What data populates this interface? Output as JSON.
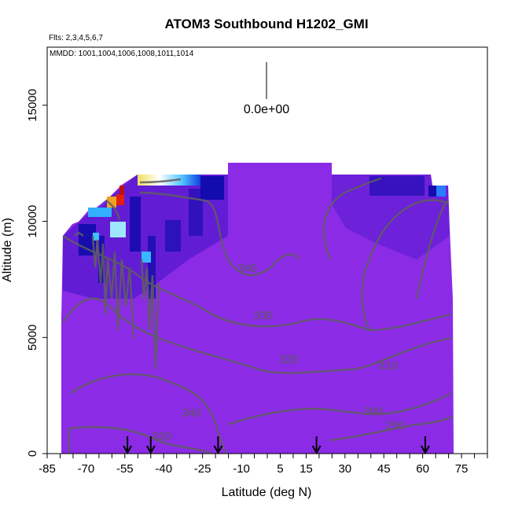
{
  "chart_data": {
    "type": "heatmap",
    "title": "ATOM3 Southbound H1202_GMI",
    "subtitle_flights": "Flts: 2,3,4,5,6,7",
    "subtitle_dates": "MMDD: 1001,1004,1006,1008,1011,1014",
    "xlabel": "Latitude (deg N)",
    "ylabel": "Altitude (m)",
    "xlim": [
      -85,
      85
    ],
    "ylim": [
      0,
      17500
    ],
    "x_tick_labels": [
      "-85",
      "-70",
      "-55",
      "-40",
      "-25",
      "-10",
      "5",
      "15",
      "30",
      "45",
      "60",
      "75"
    ],
    "y_tick_labels": [
      "0",
      "5000",
      "10000",
      "15000"
    ],
    "scale_label": "0.0e+00",
    "contour_labels": [
      "340",
      "330",
      "320",
      "310",
      "300",
      "290",
      "340",
      "320"
    ],
    "flight_markers_lat": [
      -54,
      -45,
      -19,
      19,
      61
    ],
    "colors": {
      "background_field": "#8a2be2",
      "deep_blue": "#0a0aa8",
      "contour": "#606060"
    }
  }
}
